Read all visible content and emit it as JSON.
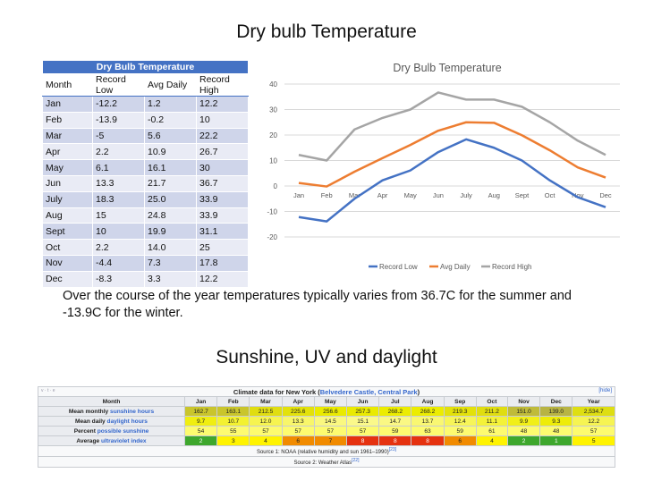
{
  "title1": "Dry bulb Temperature",
  "title2": "Sunshine, UV and daylight",
  "left_table": {
    "caption": "Dry Bulb Temperature",
    "headers": [
      "Month",
      "Record Low",
      "Avg Daily",
      "Record High"
    ],
    "rows": [
      [
        "Jan",
        "-12.2",
        "1.2",
        "12.2"
      ],
      [
        "Feb",
        "-13.9",
        "-0.2",
        "10"
      ],
      [
        "Mar",
        "-5",
        "5.6",
        "22.2"
      ],
      [
        "Apr",
        "2.2",
        "10.9",
        "26.7"
      ],
      [
        "May",
        "6.1",
        "16.1",
        "30"
      ],
      [
        "Jun",
        "13.3",
        "21.7",
        "36.7"
      ],
      [
        "July",
        "18.3",
        "25.0",
        "33.9"
      ],
      [
        "Aug",
        "15",
        "24.8",
        "33.9"
      ],
      [
        "Sept",
        "10",
        "19.9",
        "31.1"
      ],
      [
        "Oct",
        "2.2",
        "14.0",
        "25"
      ],
      [
        "Nov",
        "-4.4",
        "7.3",
        "17.8"
      ],
      [
        "Dec",
        "-8.3",
        "3.3",
        "12.2"
      ]
    ]
  },
  "chart_data": {
    "type": "line",
    "title": "Dry Bulb Temperature",
    "categories": [
      "Jan",
      "Feb",
      "Mar",
      "Apr",
      "May",
      "Jun",
      "July",
      "Aug",
      "Sept",
      "Oct",
      "Nov",
      "Dec"
    ],
    "series": [
      {
        "name": "Record Low",
        "color": "#4472c4",
        "values": [
          -12.2,
          -13.9,
          -5,
          2.2,
          6.1,
          13.3,
          18.3,
          15,
          10,
          2.2,
          -4.4,
          -8.3
        ]
      },
      {
        "name": "Avg Daily",
        "color": "#ed7d31",
        "values": [
          1.2,
          -0.2,
          5.6,
          10.9,
          16.1,
          21.7,
          25.0,
          24.8,
          19.9,
          14.0,
          7.3,
          3.3
        ]
      },
      {
        "name": "Record High",
        "color": "#a5a5a5",
        "values": [
          12.2,
          10,
          22.2,
          26.7,
          30,
          36.7,
          33.9,
          33.9,
          31.1,
          25,
          17.8,
          12.2
        ]
      }
    ],
    "yticks": [
      40,
      30,
      20,
      10,
      0,
      -10,
      -20
    ],
    "ylim": [
      -20,
      40
    ],
    "grid": true,
    "legend": "bottom"
  },
  "paragraph": "Over the course of the year temperatures typically varies from 36.7C for the summer and -13.9C for the winter.",
  "climate": {
    "vte": "v · t · e",
    "title_prefix": "Climate data for New York (",
    "title_link": "Belvedere Castle, Central Park",
    "title_suffix": ")",
    "hide": "[hide]",
    "month_label": "Month",
    "months": [
      "Jan",
      "Feb",
      "Mar",
      "Apr",
      "May",
      "Jun",
      "Jul",
      "Aug",
      "Sep",
      "Oct",
      "Nov",
      "Dec",
      "Year"
    ],
    "rows": [
      {
        "pre": "Mean monthly ",
        "link": "sunshine hours",
        "values": [
          "162.7",
          "163.1",
          "212.5",
          "225.6",
          "256.6",
          "257.3",
          "268.2",
          "268.2",
          "219.3",
          "211.2",
          "151.0",
          "139.0",
          "2,534.7"
        ],
        "colors": [
          "#c9c52c",
          "#c9c52c",
          "#e0dd10",
          "#e3e10a",
          "#eaea00",
          "#eaea00",
          "#ecec00",
          "#ecec00",
          "#e3e10a",
          "#e0dd10",
          "#bfbb3a",
          "#b8b443",
          "#dede12"
        ]
      },
      {
        "pre": "Mean daily ",
        "link": "daylight hours",
        "values": [
          "9.7",
          "10.7",
          "12.0",
          "13.3",
          "14.5",
          "15.1",
          "14.7",
          "13.7",
          "12.4",
          "11.1",
          "9.9",
          "9.3",
          "12.2"
        ],
        "colors": [
          "#f0ee10",
          "#f3f130",
          "#f6f450",
          "#f8f66a",
          "#faf880",
          "#fbf98a",
          "#faf884",
          "#f9f772",
          "#f7f558",
          "#f4f238",
          "#f1ef18",
          "#eeec08",
          "#f6f452"
        ]
      },
      {
        "pre": "Percent ",
        "link": "possible sunshine",
        "values": [
          "54",
          "55",
          "57",
          "57",
          "57",
          "57",
          "59",
          "63",
          "59",
          "61",
          "48",
          "48",
          "57"
        ],
        "colors": [
          "#fdfb70",
          "#fdfb70",
          "#fdfb70",
          "#fdfb70",
          "#fdfb70",
          "#fdfb70",
          "#fdfb70",
          "#fdfb70",
          "#fdfb70",
          "#fdfb70",
          "#fdfb70",
          "#fdfb70",
          "#fdfb70"
        ]
      },
      {
        "pre": "Average ",
        "link": "ultraviolet index",
        "values": [
          "2",
          "3",
          "4",
          "6",
          "7",
          "8",
          "8",
          "8",
          "6",
          "4",
          "2",
          "1",
          "5"
        ],
        "colors": [
          "#3ea72d",
          "#fff300",
          "#fff300",
          "#f18b00",
          "#f18b00",
          "#e53210",
          "#e53210",
          "#e53210",
          "#f18b00",
          "#fff300",
          "#3ea72d",
          "#3ea72d",
          "#fff300"
        ],
        "text": [
          "#fff",
          "#222",
          "#222",
          "#222",
          "#222",
          "#fff",
          "#fff",
          "#fff",
          "#222",
          "#222",
          "#fff",
          "#fff",
          "#222"
        ]
      }
    ],
    "source1": "Source 1: NOAA (relative humidity and sun 1961–1990)",
    "source1_ref": "[23]",
    "source2": "Source 2: Weather Atlas",
    "source2_ref": "[22]"
  }
}
